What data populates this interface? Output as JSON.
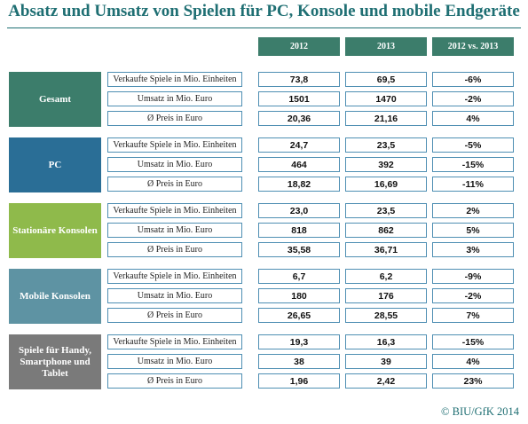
{
  "title": "Absatz und Umsatz von Spielen für PC, Konsole und mobile Endgeräte",
  "copyright": "© BIU/GfK 2014",
  "colors": {
    "title": "#1f6f73",
    "header": "#3c7d6b",
    "groups": [
      "#3c7d6b",
      "#2a6e96",
      "#8fba4b",
      "#5e93a3",
      "#7a7a7a"
    ]
  },
  "chart_data": {
    "type": "table",
    "title": "Absatz und Umsatz von Spielen für PC, Konsole und mobile Endgeräte",
    "columns": [
      "2012",
      "2013",
      "2012 vs. 2013"
    ],
    "groups": [
      {
        "name": "Gesamt",
        "rows": [
          {
            "metric": "Verkaufte Spiele in Mio. Einheiten",
            "values": [
              "73,8",
              "69,5",
              "-6%"
            ]
          },
          {
            "metric": "Umsatz in Mio. Euro",
            "values": [
              "1501",
              "1470",
              "-2%"
            ]
          },
          {
            "metric": "Ø Preis in Euro",
            "values": [
              "20,36",
              "21,16",
              "4%"
            ]
          }
        ]
      },
      {
        "name": "PC",
        "rows": [
          {
            "metric": "Verkaufte Spiele in Mio. Einheiten",
            "values": [
              "24,7",
              "23,5",
              "-5%"
            ]
          },
          {
            "metric": "Umsatz in Mio. Euro",
            "values": [
              "464",
              "392",
              "-15%"
            ]
          },
          {
            "metric": "Ø Preis in Euro",
            "values": [
              "18,82",
              "16,69",
              "-11%"
            ]
          }
        ]
      },
      {
        "name": "Stationäre Konsolen",
        "rows": [
          {
            "metric": "Verkaufte Spiele in Mio. Einheiten",
            "values": [
              "23,0",
              "23,5",
              "2%"
            ]
          },
          {
            "metric": "Umsatz in Mio. Euro",
            "values": [
              "818",
              "862",
              "5%"
            ]
          },
          {
            "metric": "Ø Preis in Euro",
            "values": [
              "35,58",
              "36,71",
              "3%"
            ]
          }
        ]
      },
      {
        "name": "Mobile Konsolen",
        "rows": [
          {
            "metric": "Verkaufte Spiele in Mio. Einheiten",
            "values": [
              "6,7",
              "6,2",
              "-9%"
            ]
          },
          {
            "metric": "Umsatz in Mio. Euro",
            "values": [
              "180",
              "176",
              "-2%"
            ]
          },
          {
            "metric": "Ø Preis in Euro",
            "values": [
              "26,65",
              "28,55",
              "7%"
            ]
          }
        ]
      },
      {
        "name": "Spiele für Handy, Smartphone und Tablet",
        "rows": [
          {
            "metric": "Verkaufte Spiele in Mio. Einheiten",
            "values": [
              "19,3",
              "16,3",
              "-15%"
            ]
          },
          {
            "metric": "Umsatz in Mio. Euro",
            "values": [
              "38",
              "39",
              "4%"
            ]
          },
          {
            "metric": "Ø Preis in Euro",
            "values": [
              "1,96",
              "2,42",
              "23%"
            ]
          }
        ]
      }
    ]
  }
}
